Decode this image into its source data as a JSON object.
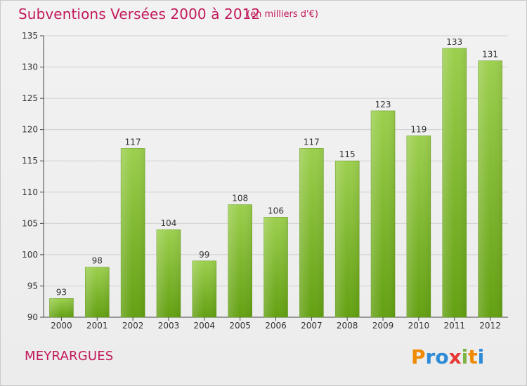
{
  "header": {
    "title": "Subventions Versées 2000 à 2012",
    "subtitle": "(en milliers d'€)"
  },
  "footer": {
    "place": "MEYRARGUES",
    "logo_text": "Proxiti"
  },
  "colors": {
    "title": "#c2185b",
    "bar_top": "#9ccf4e",
    "bar_bottom": "#63a012",
    "grid": "#d0d0d0"
  },
  "chart_data": {
    "type": "bar",
    "title": "Subventions Versées 2000 à 2012",
    "xlabel": "",
    "ylabel": "",
    "categories": [
      "2000",
      "2001",
      "2002",
      "2003",
      "2004",
      "2005",
      "2006",
      "2007",
      "2008",
      "2009",
      "2010",
      "2011",
      "2012"
    ],
    "values": [
      93,
      98,
      117,
      104,
      99,
      108,
      106,
      117,
      115,
      123,
      119,
      133,
      131
    ],
    "ylim": [
      90,
      135
    ],
    "yticks": [
      "90",
      "95",
      "100",
      "105",
      "110",
      "115",
      "120",
      "125",
      "130",
      "135"
    ],
    "grid": true,
    "legend": "none"
  }
}
